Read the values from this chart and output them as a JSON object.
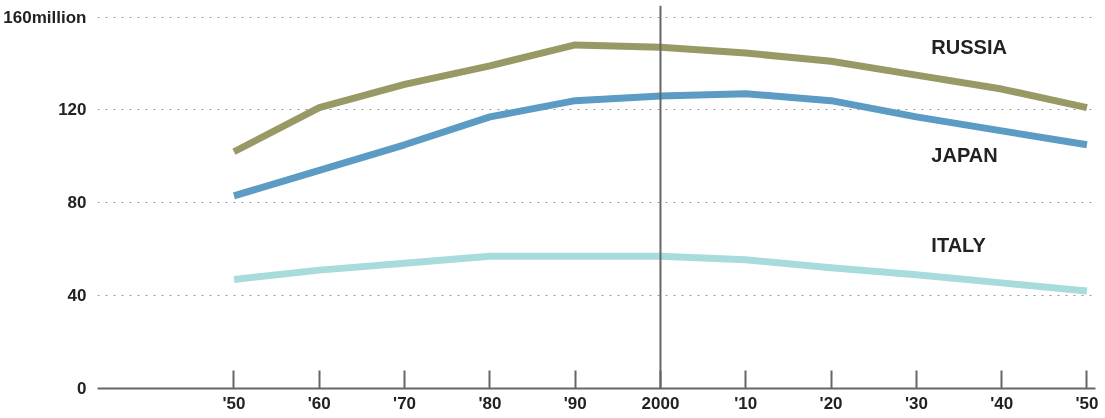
{
  "chart_data": {
    "type": "line",
    "x": [
      1950,
      1960,
      1970,
      1980,
      1990,
      2000,
      2010,
      2020,
      2030,
      2040,
      2050
    ],
    "series": [
      {
        "name": "RUSSIA",
        "color": "#999966",
        "values": [
          102,
          121,
          131,
          139,
          148,
          147,
          144.5,
          141,
          135,
          129,
          121
        ]
      },
      {
        "name": "JAPAN",
        "color": "#5b9bc4",
        "values": [
          83,
          94,
          105,
          117,
          124,
          126,
          127,
          124,
          117,
          111,
          105
        ]
      },
      {
        "name": "ITALY",
        "color": "#a8dcdc",
        "values": [
          47,
          51,
          54,
          57,
          57,
          57,
          55.5,
          52,
          49,
          45.5,
          42
        ]
      }
    ],
    "xlim": [
      1934,
      2051
    ],
    "ylim": [
      0,
      165
    ],
    "xticks": [
      {
        "value": 1950,
        "label": "'50"
      },
      {
        "value": 1960,
        "label": "'60"
      },
      {
        "value": 1970,
        "label": "'70"
      },
      {
        "value": 1980,
        "label": "'80"
      },
      {
        "value": 1990,
        "label": "'90"
      },
      2000,
      {
        "value": 2010,
        "label": "'10"
      },
      {
        "value": 2020,
        "label": "'20"
      },
      {
        "value": 2030,
        "label": "'30"
      },
      {
        "value": 2040,
        "label": "'40"
      },
      {
        "value": 2050,
        "label": "'50"
      }
    ],
    "yticks": [
      0,
      40,
      80,
      120,
      {
        "value": 160,
        "label": "160million"
      }
    ],
    "ref_lines": [
      {
        "axis": "x",
        "value": 2000,
        "color": "#666666"
      }
    ],
    "grid": "y",
    "legend": false,
    "marker": "none",
    "line_style": "solid"
  }
}
